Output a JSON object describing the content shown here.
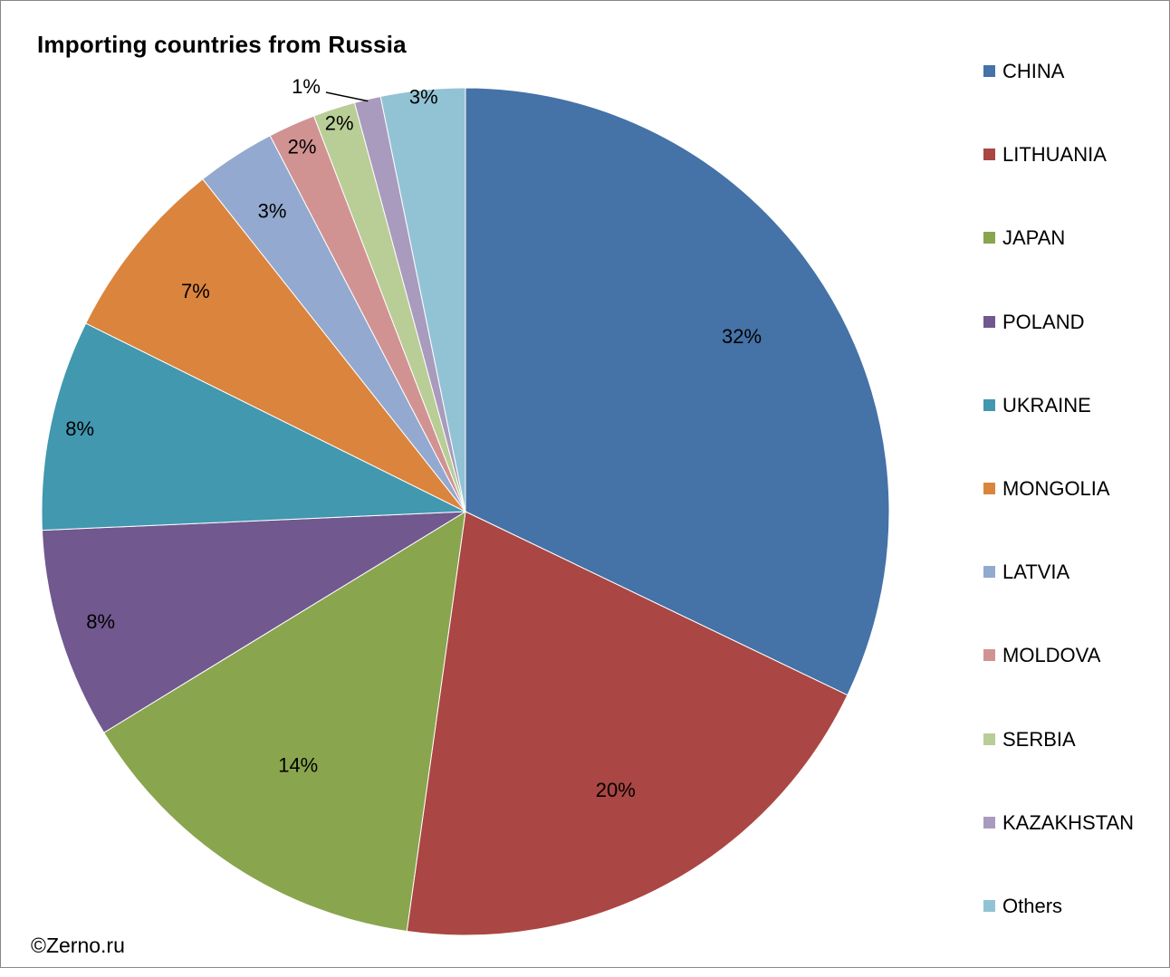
{
  "title": "Importing countries from Russia",
  "credit": "©Zerno.ru",
  "chart_data": {
    "type": "pie",
    "title": "Importing countries from Russia",
    "start": "12 o'clock, clockwise",
    "legend_position": "right",
    "slices": [
      {
        "name": "CHINA",
        "value": 32,
        "label": "32%",
        "color": "#4572A7"
      },
      {
        "name": "LITHUANIA",
        "value": 20,
        "label": "20%",
        "color": "#AA4643"
      },
      {
        "name": "JAPAN",
        "value": 14,
        "label": "14%",
        "color": "#89A54E"
      },
      {
        "name": "POLAND",
        "value": 8,
        "label": "8%",
        "color": "#71588F"
      },
      {
        "name": "UKRAINE",
        "value": 8,
        "label": "8%",
        "color": "#4198AF"
      },
      {
        "name": "MONGOLIA",
        "value": 7,
        "label": "7%",
        "color": "#DB843D"
      },
      {
        "name": "LATVIA",
        "value": 3,
        "label": "3%",
        "color": "#93A9CF"
      },
      {
        "name": "MOLDOVA",
        "value": 1.8,
        "label": "2%",
        "color": "#D19392"
      },
      {
        "name": "SERBIA",
        "value": 1.6,
        "label": "2%",
        "color": "#B9CD96"
      },
      {
        "name": "KAZAKHSTAN",
        "value": 1,
        "label": "1%",
        "color": "#A99BBD"
      },
      {
        "name": "Others",
        "value": 3.2,
        "label": "3%",
        "color": "#92C3D4"
      }
    ]
  }
}
